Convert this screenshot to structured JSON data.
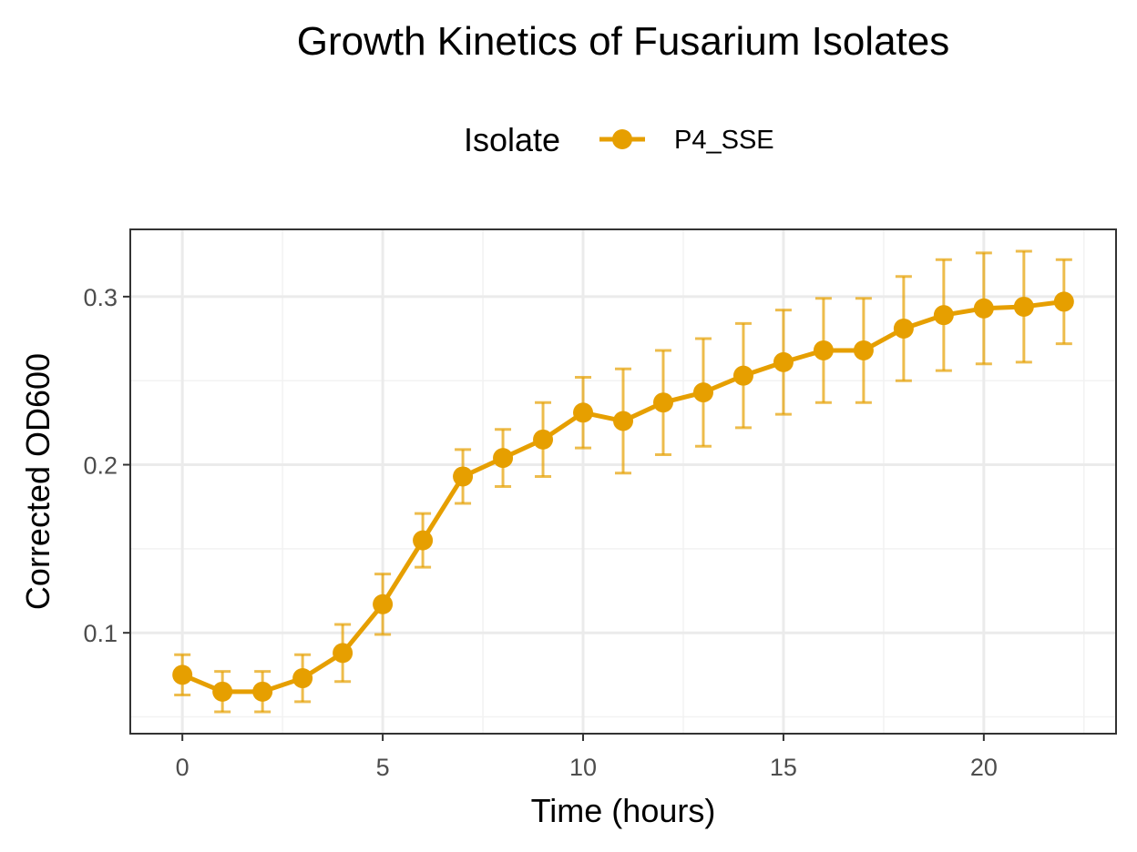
{
  "chart_data": {
    "type": "line",
    "title": "Growth Kinetics of Fusarium Isolates",
    "xlabel": "Time (hours)",
    "ylabel": "Corrected OD600",
    "xlim": [
      -1.3,
      23.3
    ],
    "ylim": [
      0.04,
      0.34
    ],
    "xticks": [
      0,
      5,
      10,
      15,
      20
    ],
    "yticks": [
      0.1,
      0.2,
      0.3
    ],
    "xtick_labels": [
      "0",
      "5",
      "10",
      "15",
      "20"
    ],
    "ytick_labels": [
      "0.1",
      "0.2",
      "0.3"
    ],
    "grid": true,
    "legend": {
      "title": "Isolate",
      "position": "top"
    },
    "series": [
      {
        "name": "P4_SSE",
        "color": "#E69F00",
        "x": [
          0,
          1,
          2,
          3,
          4,
          5,
          6,
          7,
          8,
          9,
          10,
          11,
          12,
          13,
          14,
          15,
          16,
          17,
          18,
          19,
          20,
          21,
          22
        ],
        "y": [
          0.075,
          0.065,
          0.065,
          0.073,
          0.088,
          0.117,
          0.155,
          0.193,
          0.204,
          0.215,
          0.231,
          0.226,
          0.237,
          0.243,
          0.253,
          0.261,
          0.268,
          0.268,
          0.281,
          0.289,
          0.293,
          0.294,
          0.297
        ],
        "error": [
          0.012,
          0.012,
          0.012,
          0.014,
          0.017,
          0.018,
          0.016,
          0.016,
          0.017,
          0.022,
          0.021,
          0.031,
          0.031,
          0.032,
          0.031,
          0.031,
          0.031,
          0.031,
          0.031,
          0.033,
          0.033,
          0.033,
          0.025
        ]
      }
    ]
  }
}
